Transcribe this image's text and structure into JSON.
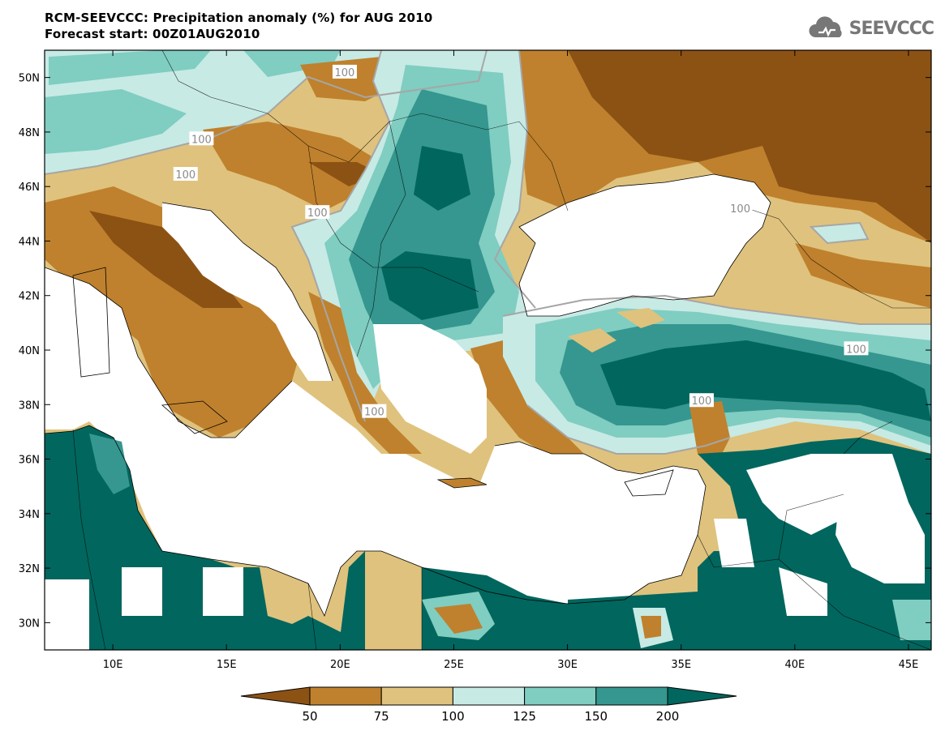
{
  "header": {
    "title": "RCM-SEEVCCC: Precipitation anomaly (%) for AUG 2010",
    "subtitle": "Forecast start: 00Z01AUG2010"
  },
  "logo": {
    "text": "SEEVCCC",
    "icon": "cloud-icon"
  },
  "map": {
    "lon_range": [
      7,
      46
    ],
    "lat_range": [
      29,
      51
    ],
    "lat_ticks": [
      {
        "value": 50,
        "label": "50N"
      },
      {
        "value": 48,
        "label": "48N"
      },
      {
        "value": 46,
        "label": "46N"
      },
      {
        "value": 44,
        "label": "44N"
      },
      {
        "value": 42,
        "label": "42N"
      },
      {
        "value": 40,
        "label": "40N"
      },
      {
        "value": 38,
        "label": "38N"
      },
      {
        "value": 36,
        "label": "36N"
      },
      {
        "value": 34,
        "label": "34N"
      },
      {
        "value": 32,
        "label": "32N"
      },
      {
        "value": 30,
        "label": "30N"
      }
    ],
    "lon_ticks": [
      {
        "value": 10,
        "label": "10E"
      },
      {
        "value": 15,
        "label": "15E"
      },
      {
        "value": 20,
        "label": "20E"
      },
      {
        "value": 25,
        "label": "25E"
      },
      {
        "value": 30,
        "label": "30E"
      },
      {
        "value": 35,
        "label": "35E"
      },
      {
        "value": 40,
        "label": "40E"
      },
      {
        "value": 45,
        "label": "45E"
      }
    ],
    "contour_labels": [
      {
        "text": "100",
        "lon": 20.2,
        "lat": 50.2
      },
      {
        "text": "100",
        "lon": 13.9,
        "lat": 47.75
      },
      {
        "text": "100",
        "lon": 13.2,
        "lat": 46.45
      },
      {
        "text": "100",
        "lon": 19.0,
        "lat": 45.05
      },
      {
        "text": "100",
        "lon": 37.6,
        "lat": 45.2
      },
      {
        "text": "100",
        "lon": 42.7,
        "lat": 40.05
      },
      {
        "text": "100",
        "lon": 35.9,
        "lat": 38.15
      },
      {
        "text": "100",
        "lon": 21.5,
        "lat": 37.75
      }
    ]
  },
  "colorbar": {
    "levels": [
      "50",
      "75",
      "100",
      "125",
      "150",
      "200"
    ],
    "colors": [
      "#8c5214",
      "#bf812d",
      "#dfc27d",
      "#c7eae5",
      "#80cdc1",
      "#35978f",
      "#01665e"
    ]
  }
}
